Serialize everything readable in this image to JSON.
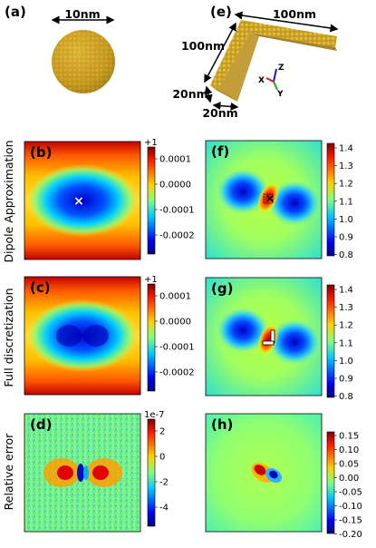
{
  "panels": {
    "a": "(a)",
    "b": "(b)",
    "c": "(c)",
    "d": "(d)",
    "e": "(e)",
    "f": "(f)",
    "g": "(g)",
    "h": "(h)"
  },
  "sphere_dimension": "10nm",
  "bar_dimensions": {
    "top": "100nm",
    "left": "100nm",
    "bottom_y": "20nm",
    "bottom_x": "20nm"
  },
  "axes_triad": {
    "z": "Z",
    "x": "X",
    "y": "Y"
  },
  "row_labels": [
    "Dipole Approximation",
    "Full discretization",
    "Relative error"
  ],
  "colorbars": {
    "b": {
      "offset": "+1",
      "ticks": [
        "0.0001",
        "0.0000",
        "-0.0001",
        "-0.0002"
      ]
    },
    "c": {
      "offset": "+1",
      "ticks": [
        "0.0001",
        "0.0000",
        "-0.0001",
        "-0.0002"
      ]
    },
    "d": {
      "offset": "1e-7",
      "ticks": [
        "2",
        "0",
        "-2",
        "-4"
      ]
    },
    "f": {
      "ticks": [
        "1.4",
        "1.3",
        "1.2",
        "1.1",
        "1.0",
        "0.9",
        "0.8"
      ]
    },
    "g": {
      "ticks": [
        "1.4",
        "1.3",
        "1.2",
        "1.1",
        "1.0",
        "0.9",
        "0.8"
      ]
    },
    "h": {
      "ticks": [
        "0.15",
        "0.10",
        "0.05",
        "0.00",
        "-0.05",
        "-0.10",
        "-0.15",
        "-0.20"
      ]
    }
  },
  "colors": {
    "map_low": "#00008b",
    "map_mid": "#7fff7f",
    "map_high": "#8b0000",
    "particle": "#c8a020"
  }
}
